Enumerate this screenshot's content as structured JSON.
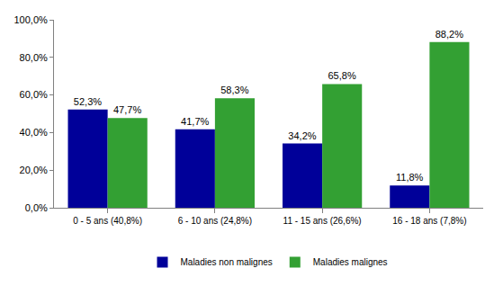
{
  "chart_data": {
    "type": "bar",
    "categories": [
      "0 - 5 ans (40,8%)",
      "6 - 10 ans (24,8%)",
      "11 - 15 ans (26,6%)",
      "16 - 18 ans (7,8%)"
    ],
    "series": [
      {
        "name": "Maladies non malignes",
        "color": "#000099",
        "values": [
          52.3,
          41.7,
          34.2,
          11.8
        ],
        "value_labels": [
          "52,3%",
          "41,7%",
          "34,2%",
          "11,8%"
        ]
      },
      {
        "name": "Maladies malignes",
        "color": "#33a033",
        "values": [
          47.7,
          58.3,
          65.8,
          88.2
        ],
        "value_labels": [
          "47,7%",
          "58,3%",
          "65,8%",
          "88,2%"
        ]
      }
    ],
    "ylim": [
      0,
      100
    ],
    "yticks": [
      {
        "value": 0,
        "label": "0,0%"
      },
      {
        "value": 20,
        "label": "20,0%"
      },
      {
        "value": 40,
        "label": "40,0%"
      },
      {
        "value": 60,
        "label": "60,0%"
      },
      {
        "value": 80,
        "label": "80,0%"
      },
      {
        "value": 100,
        "label": "100,0%"
      }
    ],
    "grid": false,
    "legend": "bottom",
    "data_labels": true
  }
}
